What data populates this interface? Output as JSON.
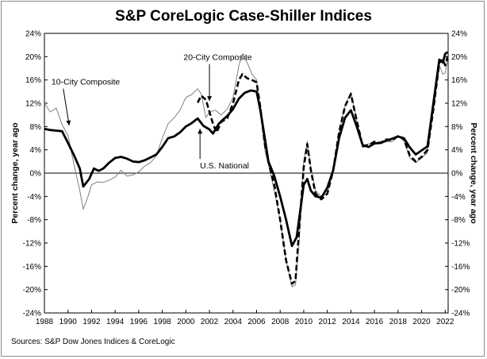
{
  "title": "S&P CoreLogic Case-Shiller Indices",
  "source": "Sources:  S&P Dow Jones Indices & CoreLogic",
  "chart_data": {
    "type": "line",
    "title": "S&P CoreLogic Case-Shiller Indices",
    "ylabel": "Percent change, year ago",
    "ylabel_right": "Percent change, year ago",
    "xlim": [
      1988,
      2022.25
    ],
    "ylim": [
      -24,
      24
    ],
    "x_ticks": [
      1988,
      1990,
      1992,
      1994,
      1996,
      1998,
      2000,
      2002,
      2004,
      2006,
      2008,
      2010,
      2012,
      2014,
      2016,
      2018,
      2020,
      2022
    ],
    "y_ticks": [
      -24,
      -20,
      -16,
      -12,
      -8,
      -4,
      0,
      4,
      8,
      12,
      16,
      20,
      24
    ],
    "y_tick_labels": [
      "-24%",
      "-20%",
      "-16%",
      "-12%",
      "-8%",
      "-4%",
      "0%",
      "4%",
      "8%",
      "12%",
      "16%",
      "20%",
      "24%"
    ],
    "grid": false,
    "zero_line": true,
    "annotations": [
      {
        "text": "10-City Composite",
        "x": 1988.6,
        "y": 15.2,
        "arrow_to": [
          1990.1,
          8.2
        ]
      },
      {
        "text": "20-City Composite",
        "x": 1999.8,
        "y": 19.4,
        "arrow_to": [
          2002.0,
          12.4
        ]
      },
      {
        "text": "U.S. National",
        "x": 2001.2,
        "y": 0.8,
        "arrow_to": [
          2001.2,
          7.6
        ]
      }
    ],
    "series": [
      {
        "name": "U.S. National",
        "style": "solid-thick",
        "color": "#000000",
        "points": [
          [
            1988,
            7.6
          ],
          [
            1988.5,
            7.4
          ],
          [
            1989,
            7.3
          ],
          [
            1989.5,
            7.2
          ],
          [
            1990,
            5.2
          ],
          [
            1990.5,
            3.1
          ],
          [
            1991,
            0.8
          ],
          [
            1991.3,
            -2.3
          ],
          [
            1991.8,
            -1.0
          ],
          [
            1992.2,
            0.8
          ],
          [
            1992.6,
            0.4
          ],
          [
            1993,
            0.8
          ],
          [
            1993.5,
            1.8
          ],
          [
            1994,
            2.6
          ],
          [
            1994.5,
            2.8
          ],
          [
            1995,
            2.5
          ],
          [
            1995.5,
            2.0
          ],
          [
            1996,
            1.9
          ],
          [
            1996.5,
            2.2
          ],
          [
            1997,
            2.7
          ],
          [
            1997.5,
            3.2
          ],
          [
            1998,
            4.5
          ],
          [
            1998.5,
            6.0
          ],
          [
            1999,
            6.3
          ],
          [
            1999.5,
            7.0
          ],
          [
            2000,
            8.0
          ],
          [
            2000.5,
            8.6
          ],
          [
            2001,
            9.4
          ],
          [
            2001.5,
            8.1
          ],
          [
            2002,
            7.5
          ],
          [
            2002.3,
            6.8
          ],
          [
            2002.8,
            8.5
          ],
          [
            2003,
            8.9
          ],
          [
            2003.5,
            9.8
          ],
          [
            2004,
            11.0
          ],
          [
            2004.5,
            12.8
          ],
          [
            2005,
            13.8
          ],
          [
            2005.5,
            14.2
          ],
          [
            2006,
            14.0
          ],
          [
            2006.3,
            11.0
          ],
          [
            2006.7,
            6.0
          ],
          [
            2007,
            2.0
          ],
          [
            2007.5,
            -0.5
          ],
          [
            2008,
            -4.0
          ],
          [
            2008.5,
            -8.0
          ],
          [
            2009,
            -12.5
          ],
          [
            2009.4,
            -11.0
          ],
          [
            2009.8,
            -5.0
          ],
          [
            2010,
            -2.0
          ],
          [
            2010.3,
            -1.0
          ],
          [
            2010.6,
            -3.0
          ],
          [
            2011,
            -4.0
          ],
          [
            2011.5,
            -4.2
          ],
          [
            2012,
            -2.5
          ],
          [
            2012.5,
            0.5
          ],
          [
            2013,
            6.0
          ],
          [
            2013.5,
            9.5
          ],
          [
            2014,
            10.8
          ],
          [
            2014.5,
            8.0
          ],
          [
            2015,
            4.8
          ],
          [
            2015.5,
            4.5
          ],
          [
            2016,
            5.1
          ],
          [
            2016.5,
            5.2
          ],
          [
            2017,
            5.6
          ],
          [
            2017.5,
            5.9
          ],
          [
            2018,
            6.3
          ],
          [
            2018.5,
            6.0
          ],
          [
            2019,
            4.4
          ],
          [
            2019.5,
            3.2
          ],
          [
            2020,
            3.9
          ],
          [
            2020.5,
            4.6
          ],
          [
            2021,
            12.0
          ],
          [
            2021.5,
            19.5
          ],
          [
            2021.8,
            19.0
          ],
          [
            2022,
            20.5
          ],
          [
            2022.2,
            20.8
          ]
        ]
      },
      {
        "name": "20-City Composite",
        "style": "dashed-thick",
        "color": "#000000",
        "points": [
          [
            2001,
            12.1
          ],
          [
            2001.3,
            13.3
          ],
          [
            2001.7,
            12.6
          ],
          [
            2002,
            10.5
          ],
          [
            2002.3,
            8.5
          ],
          [
            2002.6,
            7.0
          ],
          [
            2003,
            8.8
          ],
          [
            2003.5,
            9.4
          ],
          [
            2004,
            12.0
          ],
          [
            2004.5,
            16.0
          ],
          [
            2004.8,
            17.0
          ],
          [
            2005.2,
            16.3
          ],
          [
            2005.6,
            16.0
          ],
          [
            2006,
            15.6
          ],
          [
            2006.3,
            11.5
          ],
          [
            2006.7,
            5.0
          ],
          [
            2007,
            2.0
          ],
          [
            2007.5,
            -2.0
          ],
          [
            2008,
            -8.0
          ],
          [
            2008.5,
            -15.0
          ],
          [
            2009,
            -19.0
          ],
          [
            2009.3,
            -18.5
          ],
          [
            2009.6,
            -10.0
          ],
          [
            2010,
            1.0
          ],
          [
            2010.3,
            5.0
          ],
          [
            2010.6,
            0.5
          ],
          [
            2011,
            -3.5
          ],
          [
            2011.5,
            -4.5
          ],
          [
            2012,
            -3.5
          ],
          [
            2012.5,
            0.5
          ],
          [
            2013,
            7.0
          ],
          [
            2013.5,
            11.5
          ],
          [
            2014,
            13.6
          ],
          [
            2014.5,
            9.0
          ],
          [
            2015,
            4.6
          ],
          [
            2015.5,
            4.8
          ],
          [
            2016,
            5.4
          ],
          [
            2016.5,
            5.2
          ],
          [
            2017,
            5.8
          ],
          [
            2017.5,
            5.6
          ],
          [
            2018,
            6.4
          ],
          [
            2018.5,
            5.8
          ],
          [
            2019,
            3.0
          ],
          [
            2019.5,
            2.0
          ],
          [
            2020,
            2.8
          ],
          [
            2020.5,
            4.0
          ],
          [
            2021,
            11.0
          ],
          [
            2021.5,
            19.0
          ],
          [
            2021.8,
            19.5
          ],
          [
            2022,
            18.5
          ],
          [
            2022.2,
            20.0
          ]
        ]
      },
      {
        "name": "10-City Composite",
        "style": "solid-thin",
        "color": "#808080",
        "points": [
          [
            1988,
            12.0
          ],
          [
            1988.5,
            10.5
          ],
          [
            1989,
            11.2
          ],
          [
            1989.5,
            8.3
          ],
          [
            1990,
            6.5
          ],
          [
            1990.5,
            1.5
          ],
          [
            1991,
            -3.0
          ],
          [
            1991.3,
            -6.2
          ],
          [
            1991.7,
            -4.0
          ],
          [
            1992,
            -2.0
          ],
          [
            1992.5,
            -1.5
          ],
          [
            1993,
            -1.6
          ],
          [
            1993.5,
            -1.2
          ],
          [
            1994,
            -0.7
          ],
          [
            1994.5,
            0.5
          ],
          [
            1995,
            -0.5
          ],
          [
            1995.5,
            -0.3
          ],
          [
            1996,
            0.2
          ],
          [
            1996.5,
            1.2
          ],
          [
            1997,
            1.8
          ],
          [
            1997.5,
            3.0
          ],
          [
            1998,
            6.0
          ],
          [
            1998.5,
            8.5
          ],
          [
            1999,
            9.5
          ],
          [
            1999.5,
            10.8
          ],
          [
            2000,
            13.0
          ],
          [
            2000.5,
            13.5
          ],
          [
            2001,
            14.5
          ],
          [
            2001.3,
            13.6
          ],
          [
            2001.7,
            9.5
          ],
          [
            2002,
            10.5
          ],
          [
            2002.5,
            10.8
          ],
          [
            2003,
            10.0
          ],
          [
            2003.5,
            11.0
          ],
          [
            2004,
            13.0
          ],
          [
            2004.5,
            18.5
          ],
          [
            2004.8,
            20.5
          ],
          [
            2005.2,
            19.0
          ],
          [
            2005.6,
            17.0
          ],
          [
            2006,
            16.0
          ],
          [
            2006.3,
            11.0
          ],
          [
            2006.7,
            4.0
          ],
          [
            2007,
            1.5
          ],
          [
            2007.5,
            -3.0
          ],
          [
            2008,
            -8.0
          ],
          [
            2008.5,
            -15.0
          ],
          [
            2009,
            -19.5
          ],
          [
            2009.3,
            -19.2
          ],
          [
            2009.6,
            -12.0
          ],
          [
            2010,
            2.0
          ],
          [
            2010.3,
            5.5
          ],
          [
            2010.6,
            1.0
          ],
          [
            2011,
            -3.0
          ],
          [
            2011.5,
            -4.0
          ],
          [
            2012,
            -3.5
          ],
          [
            2012.5,
            0.5
          ],
          [
            2013,
            7.0
          ],
          [
            2013.5,
            11.5
          ],
          [
            2014,
            13.9
          ],
          [
            2014.5,
            9.0
          ],
          [
            2015,
            4.8
          ],
          [
            2015.5,
            5.0
          ],
          [
            2016,
            5.3
          ],
          [
            2016.5,
            5.0
          ],
          [
            2017,
            5.4
          ],
          [
            2017.5,
            5.4
          ],
          [
            2018,
            6.5
          ],
          [
            2018.5,
            5.5
          ],
          [
            2019,
            2.6
          ],
          [
            2019.5,
            1.8
          ],
          [
            2020,
            2.6
          ],
          [
            2020.5,
            3.5
          ],
          [
            2021,
            11.0
          ],
          [
            2021.5,
            18.5
          ],
          [
            2021.8,
            17.0
          ],
          [
            2022,
            17.2
          ],
          [
            2022.2,
            19.5
          ]
        ]
      }
    ]
  }
}
